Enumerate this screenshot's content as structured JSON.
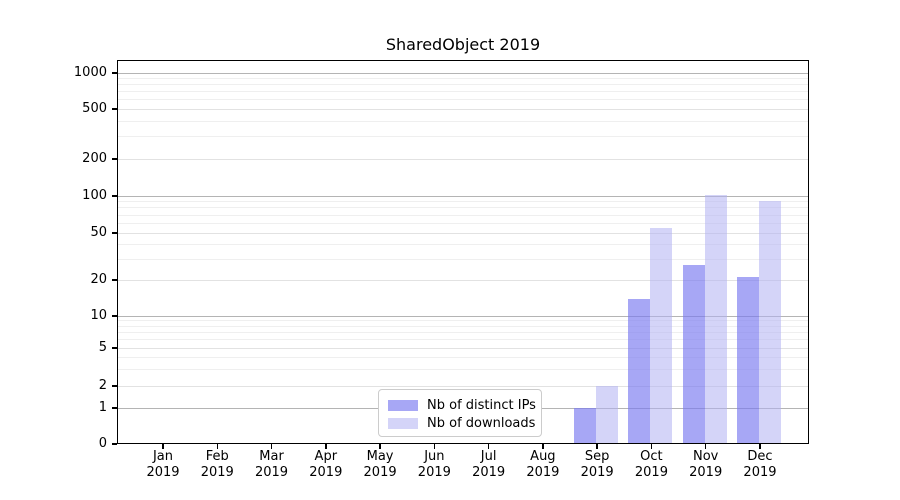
{
  "title": "SharedObject 2019",
  "legend": {
    "items": [
      {
        "label": "Nb of distinct IPs",
        "color": "rgba(122,122,240,0.66)"
      },
      {
        "label": "Nb of downloads",
        "color": "rgba(176,176,243,0.55)"
      }
    ]
  },
  "colors": {
    "distinct_ips_bar": "rgba(122,122,240,0.66)",
    "downloads_bar": "rgba(176,176,243,0.55)",
    "major_gridline": "#b4b4b4",
    "minor_gridline": "#e8e8e8",
    "axis": "#000000"
  },
  "chart_data": {
    "type": "bar",
    "title": "SharedObject 2019",
    "categories": [
      "Jan 2019",
      "Feb 2019",
      "Mar 2019",
      "Apr 2019",
      "May 2019",
      "Jun 2019",
      "Jul 2019",
      "Aug 2019",
      "Sep 2019",
      "Oct 2019",
      "Nov 2019",
      "Dec 2019"
    ],
    "series": [
      {
        "name": "Nb of distinct IPs",
        "values": [
          0,
          0,
          0,
          0,
          0,
          0,
          0,
          0,
          1,
          14,
          27,
          21
        ]
      },
      {
        "name": "Nb of downloads",
        "values": [
          0,
          0,
          0,
          0,
          0,
          0,
          0,
          0,
          2,
          55,
          102,
          91
        ]
      }
    ],
    "xlabel": "",
    "ylabel": "",
    "y_scale": "symlog",
    "y_ticks": [
      0,
      1,
      2,
      5,
      10,
      20,
      50,
      100,
      200,
      500,
      1000
    ],
    "ylim": [
      0,
      1250
    ],
    "grid": true,
    "legend_position": "lower center"
  }
}
